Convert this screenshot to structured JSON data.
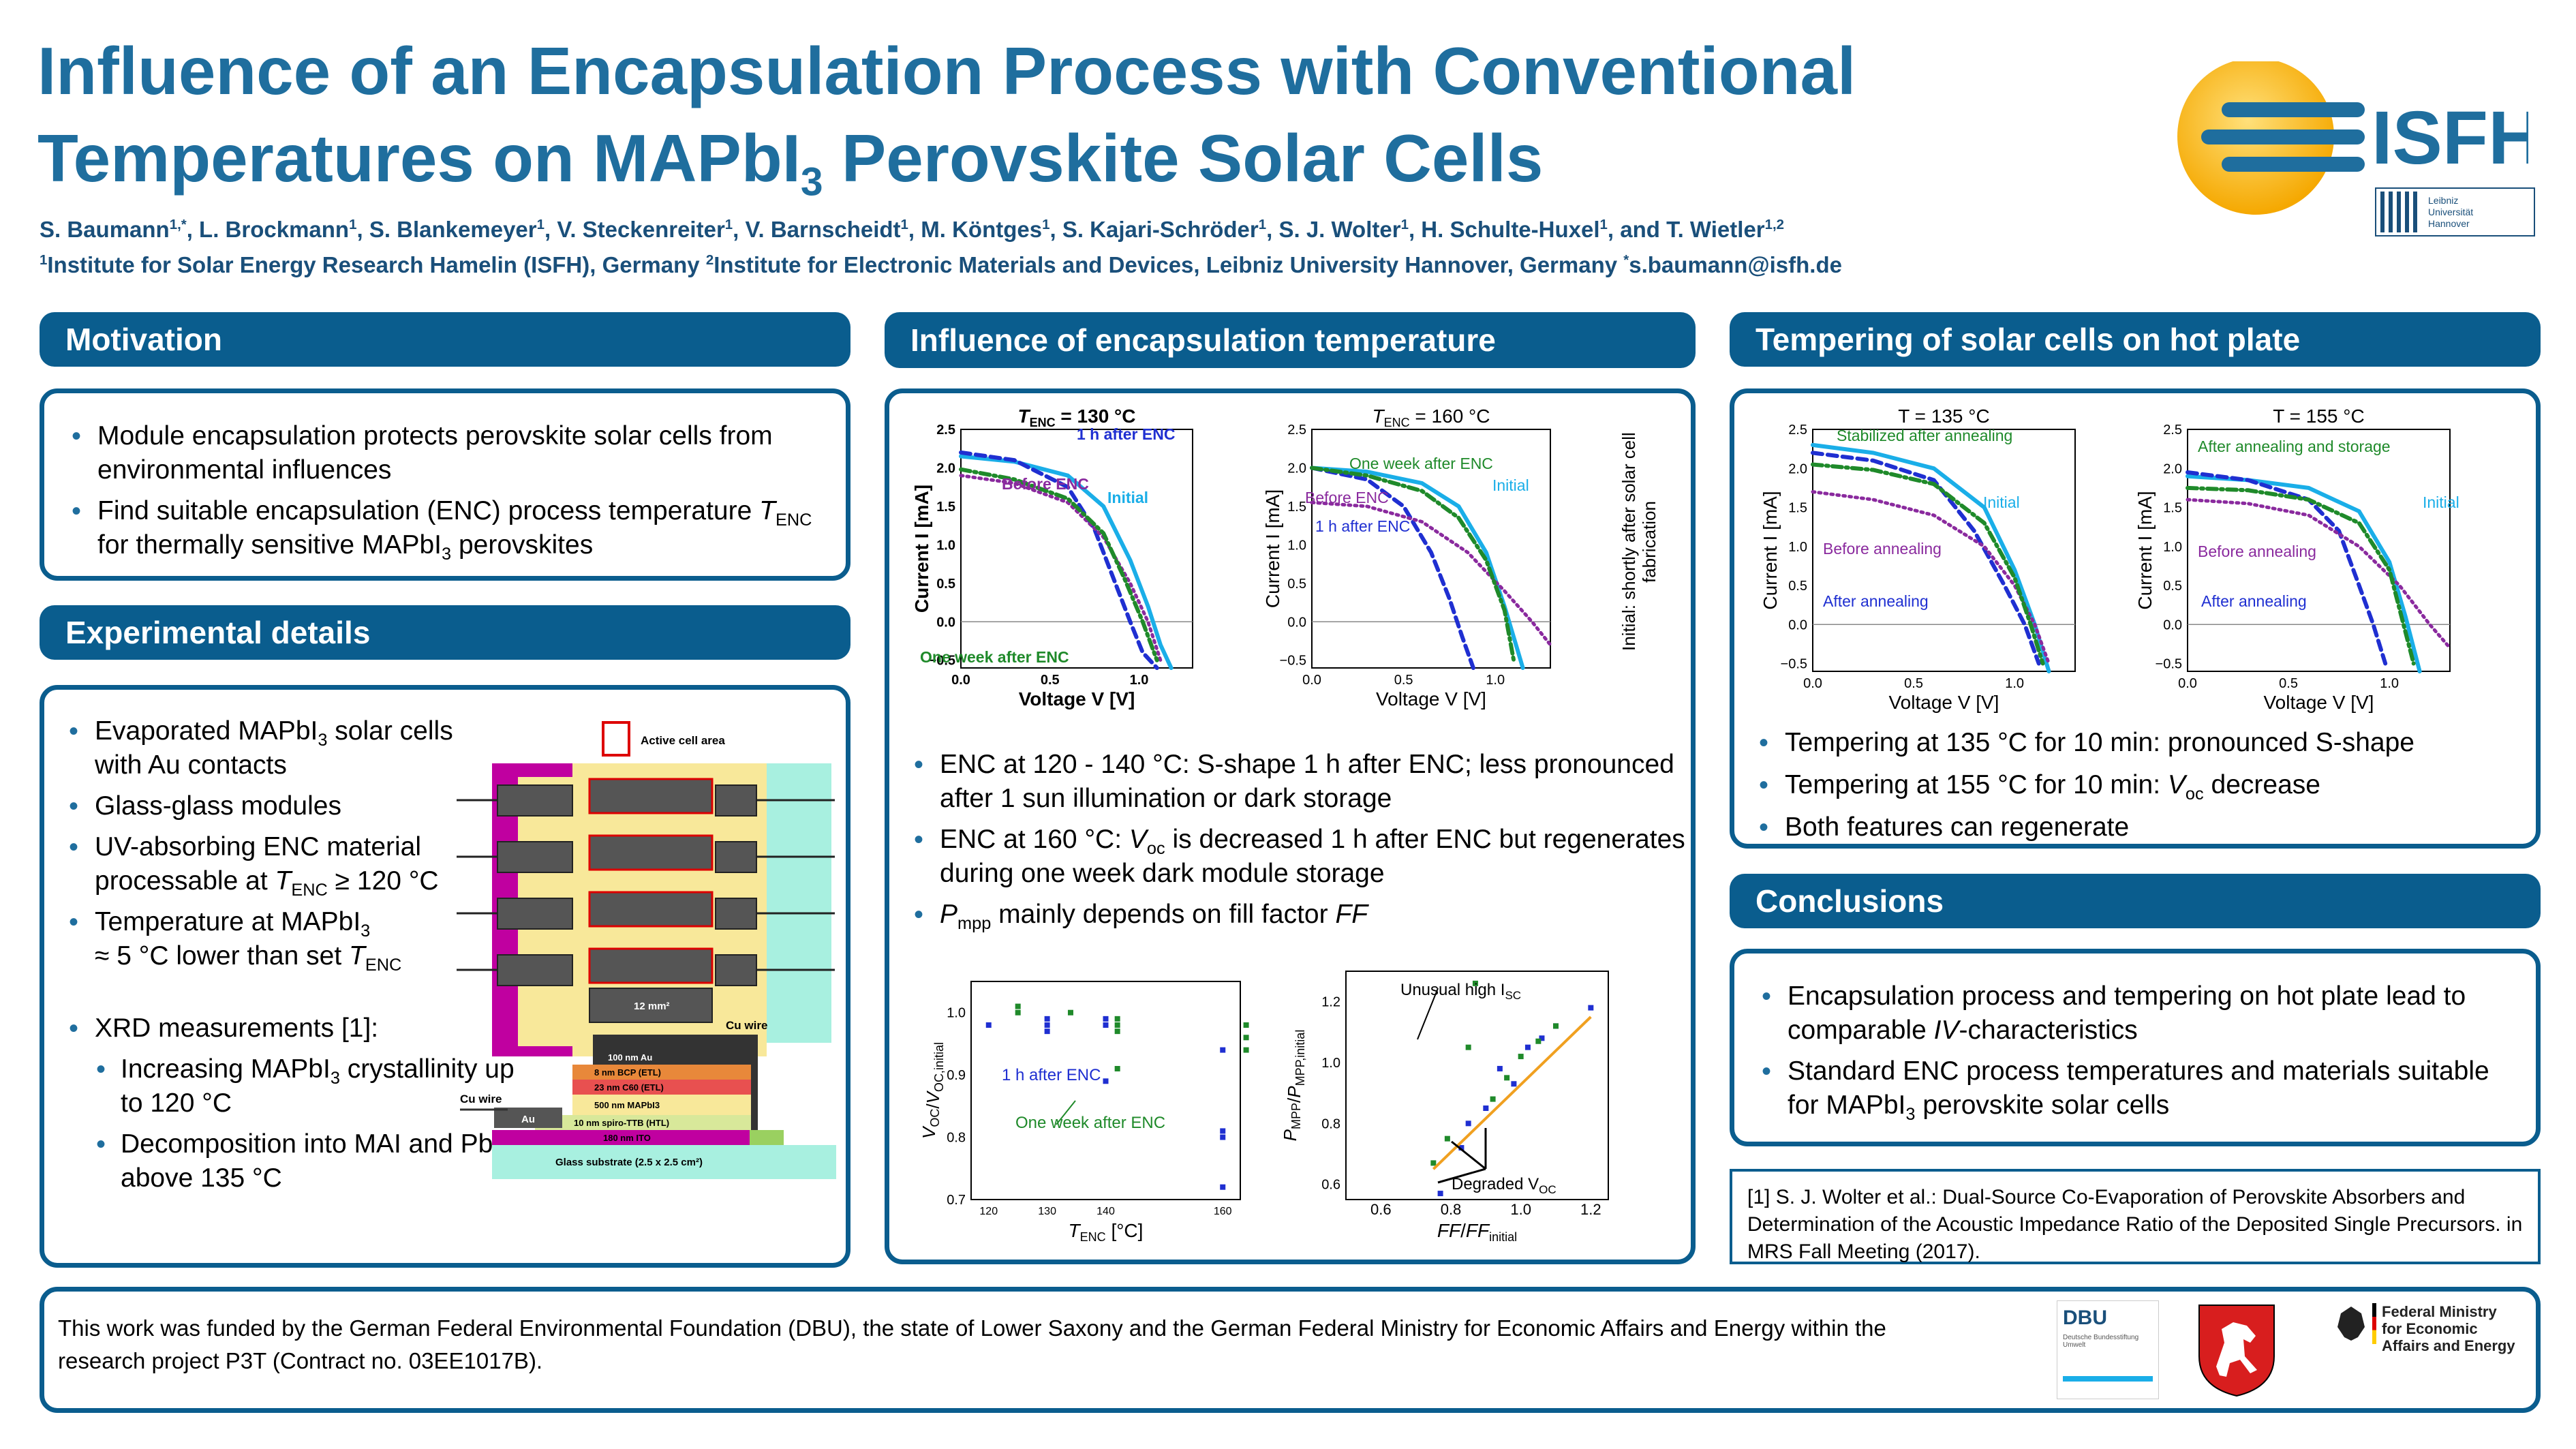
{
  "title": {
    "line1": "Influence of an Encapsulation Process with Conventional",
    "line2a": "Temperatures on MAPbI",
    "line2sub": "3",
    "line2b": " Perovskite Solar Cells"
  },
  "authors": {
    "names": [
      "S. Baumann",
      "L. Brockmann",
      "S. Blankemeyer",
      "V. Steckenreiter",
      "V. Barnscheidt",
      "M. Köntges",
      "S. Kajari-Schröder",
      "S. J. Wolter",
      "H. Schulte-Huxel",
      "and T. Wietler"
    ],
    "sups": [
      "1,*",
      "1",
      "1",
      "1",
      "1",
      "1",
      "1",
      "1",
      "1",
      "1,2"
    ]
  },
  "affiliations": {
    "a1": "Institute for Solar Energy Research Hamelin (ISFH), Germany ",
    "a2": "Institute for Electronic Materials and Devices, Leibniz University Hannover, Germany ",
    "email": "s.baumann@isfh.de"
  },
  "logos": {
    "isfh": "ISFH",
    "leibniz": "Leibniz\nUniversität\nHannover",
    "dbu": "DBU",
    "dbu_small": "Deutsche Bundesstiftung Umwelt",
    "ministry": "Federal Ministry for Economic Affairs and Energy"
  },
  "headers": {
    "motivation": "Motivation",
    "experimental": "Experimental details",
    "influence": "Influence of encapsulation temperature",
    "tempering": "Tempering of solar cells on hot plate",
    "conclusions": "Conclusions"
  },
  "motivation": {
    "b1": "Module encapsulation protects perovskite solar cells from environmental influences",
    "b2a": "Find suitable encapsulation (ENC) process temperature ",
    "b2b": " for thermally sensitive MAPbI",
    "b2c": " perovskites"
  },
  "experimental": {
    "b1a": "Evaporated MAPbI",
    "b1b": " solar cells with Au contacts",
    "b2": "Glass-glass modules",
    "b3a": "UV-absorbing ENC material processable at ",
    "b3b": " ≥ 120 °C",
    "b4a": "Temperature at MAPbI",
    "b4b": "≈ 5 °C lower than set ",
    "b5": "XRD measurements [1]:",
    "s1a": "Increasing MAPbI",
    "s1b": " crystallinity up to 120 °C",
    "s2a": "Decomposition into MAI and PbI",
    "s2b": " above 135 °C"
  },
  "diagram": {
    "active_cell_area": "Active cell area",
    "area_12": "12 mm²",
    "cu_wire_top": "Cu wire",
    "cu_wire_left": "Cu wire",
    "au": "Au",
    "layers": [
      "100 nm Au",
      "8 nm BCP (ETL)",
      "23 nm C60 (ETL)",
      "500 nm MAPbI3",
      "10 nm spiro-TTB (HTL)",
      "180 nm ITO",
      "Glass substrate (2.5 x 2.5 cm²)"
    ]
  },
  "influence": {
    "b1": "ENC at 120 - 140 °C: S-shape 1 h after ENC; less pronounced after 1 sun illumination or dark storage",
    "b2a": "ENC at 160 °C: ",
    "b2b": " is decreased 1 h after ENC but regenerates during one week dark module storage",
    "b3a": " mainly depends on fill factor "
  },
  "tempering": {
    "b1": "Tempering at 135 °C for 10 min: pronounced S-shape",
    "b2a": "Tempering at 155 °C for 10 min: ",
    "b2b": " decrease",
    "b3": "Both features can regenerate"
  },
  "conclusions": {
    "b1a": "Encapsulation process and tempering on hot plate lead to comparable ",
    "b1b": "IV",
    "b1c": "-characteristics",
    "b2a": "Standard ENC process temperatures and materials suitable for MAPbI",
    "b2b": " perovskite solar cells"
  },
  "reference": "[1] S. J. Wolter et al.: Dual-Source Co-Evaporation of Perovskite Absorbers and Determination of the Acoustic Impedance Ratio of the Deposited Single Precursors. in MRS Fall Meeting (2017).",
  "funding": "This work was funded by the German Federal Environmental Foundation (DBU), the state of Lower Saxony and the German Federal Ministry for Economic Affairs and Energy within the research project P3T (Contract no. 03EE1017B).",
  "side_note": "Initial: shortly after solar cell fabrication",
  "colors": {
    "initial": "#1aaee8",
    "before": "#8a2a9e",
    "after1h": "#1f2fd1",
    "week": "#1f8a2a"
  },
  "chart_data": [
    {
      "type": "line",
      "title": "T_ENC = 130 °C",
      "xlabel": "Voltage V [V]",
      "ylabel": "Current I [mA]",
      "xlim": [
        0,
        1.3
      ],
      "ylim": [
        -0.6,
        2.5
      ],
      "xticks": [
        "0.0",
        "0.5",
        "1.0"
      ],
      "yticks": [
        "−0.5",
        "0.0",
        "0.5",
        "1.0",
        "1.5",
        "2.0",
        "2.5"
      ],
      "annotations": [
        "1 h after ENC",
        "Before ENC",
        "Initial",
        "One week after ENC"
      ],
      "series": [
        {
          "name": "Initial",
          "style": "solid",
          "color": "#1aaee8",
          "x": [
            0,
            0.3,
            0.6,
            0.8,
            0.95,
            1.05,
            1.12,
            1.18
          ],
          "y": [
            2.15,
            2.08,
            1.9,
            1.5,
            0.8,
            0.2,
            -0.3,
            -0.6
          ]
        },
        {
          "name": "1 h after ENC",
          "style": "dashed",
          "color": "#1f2fd1",
          "x": [
            0,
            0.3,
            0.6,
            0.75,
            0.85,
            0.95,
            1.02,
            1.1
          ],
          "y": [
            2.2,
            2.1,
            1.75,
            1.2,
            0.6,
            0,
            -0.4,
            -0.6
          ]
        },
        {
          "name": "Before ENC",
          "style": "dotted",
          "color": "#8a2a9e",
          "x": [
            0,
            0.3,
            0.6,
            0.8,
            0.95,
            1.05,
            1.12
          ],
          "y": [
            1.9,
            1.8,
            1.55,
            1.1,
            0.5,
            0,
            -0.5
          ]
        },
        {
          "name": "One week after ENC",
          "style": "dashdot",
          "color": "#1f8a2a",
          "x": [
            0,
            0.3,
            0.6,
            0.8,
            0.92,
            1.02,
            1.1
          ],
          "y": [
            1.98,
            1.85,
            1.6,
            1.15,
            0.55,
            0,
            -0.5
          ]
        }
      ]
    },
    {
      "type": "line",
      "title": "T_ENC = 160 °C",
      "xlabel": "Voltage V [V]",
      "ylabel": "Current I [mA]",
      "xlim": [
        0,
        1.3
      ],
      "ylim": [
        -0.6,
        2.5
      ],
      "xticks": [
        "0.0",
        "0.5",
        "1.0"
      ],
      "yticks": [
        "−0.5",
        "0.0",
        "0.5",
        "1.0",
        "1.5",
        "2.0",
        "2.5"
      ],
      "annotations": [
        "One week after ENC",
        "Initial",
        "Before ENC",
        "1 h after ENC"
      ],
      "series": [
        {
          "name": "Initial",
          "style": "solid",
          "color": "#1aaee8",
          "x": [
            0,
            0.3,
            0.6,
            0.8,
            0.95,
            1.05,
            1.1,
            1.15
          ],
          "y": [
            2.0,
            1.95,
            1.8,
            1.5,
            0.9,
            0.2,
            -0.2,
            -0.6
          ]
        },
        {
          "name": "1 h after ENC",
          "style": "dashed",
          "color": "#1f2fd1",
          "x": [
            0,
            0.3,
            0.5,
            0.65,
            0.75,
            0.82,
            0.88
          ],
          "y": [
            2.0,
            1.85,
            1.5,
            0.9,
            0.3,
            -0.2,
            -0.6
          ]
        },
        {
          "name": "Before ENC",
          "style": "dotted",
          "color": "#8a2a9e",
          "x": [
            0,
            0.3,
            0.6,
            0.85,
            1.05,
            1.2,
            1.3
          ],
          "y": [
            1.55,
            1.5,
            1.3,
            0.9,
            0.4,
            0,
            -0.3
          ]
        },
        {
          "name": "One week after ENC",
          "style": "dashdot",
          "color": "#1f8a2a",
          "x": [
            0,
            0.3,
            0.6,
            0.8,
            0.95,
            1.05,
            1.1
          ],
          "y": [
            2.0,
            1.9,
            1.7,
            1.35,
            0.8,
            0.15,
            -0.5
          ]
        }
      ]
    },
    {
      "type": "line",
      "title": "T = 135 °C",
      "xlabel": "Voltage V [V]",
      "ylabel": "Current I [mA]",
      "xlim": [
        0,
        1.3
      ],
      "ylim": [
        -0.6,
        2.5
      ],
      "xticks": [
        "0.0",
        "0.5",
        "1.0"
      ],
      "yticks": [
        "−0.5",
        "0.0",
        "0.5",
        "1.0",
        "1.5",
        "2.0",
        "2.5"
      ],
      "annotations": [
        "Stabilized after annealing",
        "Initial",
        "Before annealing",
        "After annealing"
      ],
      "series": [
        {
          "name": "Initial",
          "style": "solid",
          "color": "#1aaee8",
          "x": [
            0,
            0.3,
            0.6,
            0.85,
            1.0,
            1.1,
            1.17
          ],
          "y": [
            2.3,
            2.2,
            2.0,
            1.5,
            0.7,
            0,
            -0.6
          ]
        },
        {
          "name": "After annealing",
          "style": "dashed",
          "color": "#1f2fd1",
          "x": [
            0,
            0.3,
            0.6,
            0.8,
            0.95,
            1.05,
            1.12
          ],
          "y": [
            2.2,
            2.1,
            1.85,
            1.2,
            0.5,
            0,
            -0.5
          ]
        },
        {
          "name": "Before annealing",
          "style": "dotted",
          "color": "#8a2a9e",
          "x": [
            0,
            0.3,
            0.6,
            0.85,
            1.0,
            1.1,
            1.17
          ],
          "y": [
            1.7,
            1.6,
            1.4,
            1.0,
            0.5,
            0,
            -0.5
          ]
        },
        {
          "name": "Stabilized after annealing",
          "style": "dashdot",
          "color": "#1f8a2a",
          "x": [
            0,
            0.3,
            0.6,
            0.85,
            1.0,
            1.08,
            1.14
          ],
          "y": [
            2.05,
            1.98,
            1.8,
            1.3,
            0.6,
            0,
            -0.5
          ]
        }
      ]
    },
    {
      "type": "line",
      "title": "T = 155 °C",
      "xlabel": "Voltage V [V]",
      "ylabel": "Current I [mA]",
      "xlim": [
        0,
        1.3
      ],
      "ylim": [
        -0.6,
        2.5
      ],
      "xticks": [
        "0.0",
        "0.5",
        "1.0"
      ],
      "yticks": [
        "−0.5",
        "0.0",
        "0.5",
        "1.0",
        "1.5",
        "2.0",
        "2.5"
      ],
      "annotations": [
        "After annealing and storage",
        "Initial",
        "Before annealing",
        "After annealing"
      ],
      "series": [
        {
          "name": "Initial",
          "style": "solid",
          "color": "#1aaee8",
          "x": [
            0,
            0.3,
            0.6,
            0.85,
            1.0,
            1.08,
            1.15
          ],
          "y": [
            1.9,
            1.85,
            1.75,
            1.45,
            0.8,
            0.1,
            -0.6
          ]
        },
        {
          "name": "After annealing",
          "style": "dashed",
          "color": "#1f2fd1",
          "x": [
            0,
            0.3,
            0.6,
            0.75,
            0.85,
            0.92,
            0.98
          ],
          "y": [
            1.95,
            1.85,
            1.6,
            1.2,
            0.5,
            0,
            -0.5
          ]
        },
        {
          "name": "Before annealing",
          "style": "dotted",
          "color": "#8a2a9e",
          "x": [
            0,
            0.3,
            0.6,
            0.85,
            1.05,
            1.2,
            1.3
          ],
          "y": [
            1.6,
            1.55,
            1.4,
            1.0,
            0.5,
            0,
            -0.3
          ]
        },
        {
          "name": "After annealing and storage",
          "style": "dashdot",
          "color": "#1f8a2a",
          "x": [
            0,
            0.3,
            0.6,
            0.85,
            1.0,
            1.07,
            1.12
          ],
          "y": [
            1.75,
            1.72,
            1.6,
            1.3,
            0.7,
            0,
            -0.5
          ]
        }
      ]
    },
    {
      "type": "scatter",
      "xlabel": "T_ENC [°C]",
      "ylabel": "V_OC/V_OC,initial",
      "xlim": [
        117,
        163
      ],
      "ylim": [
        0.7,
        1.05
      ],
      "xticks": [
        "120",
        "130",
        "140",
        "160"
      ],
      "yticks": [
        "0.7",
        "0.8",
        "0.9",
        "1.0"
      ],
      "annotations": [
        "1 h after ENC",
        "One week after ENC"
      ],
      "series": [
        {
          "name": "1 h after ENC",
          "color": "#1f2fd1",
          "x": [
            120,
            130,
            130,
            130,
            140,
            140,
            140,
            160,
            160,
            160,
            160
          ],
          "y": [
            0.98,
            0.99,
            0.98,
            0.97,
            0.99,
            0.98,
            0.89,
            0.94,
            0.81,
            0.8,
            0.72
          ]
        },
        {
          "name": "One week after ENC",
          "color": "#1f8a2a",
          "x": [
            125,
            125,
            134,
            142,
            142,
            142,
            142,
            164,
            164,
            164
          ],
          "y": [
            1.01,
            1.0,
            1.0,
            0.99,
            0.98,
            0.97,
            0.91,
            0.98,
            0.96,
            0.94
          ]
        }
      ]
    },
    {
      "type": "scatter",
      "xlabel": "FF/FF_initial",
      "ylabel": "P_MPP/P_MPP,initial",
      "xlim": [
        0.5,
        1.25
      ],
      "ylim": [
        0.55,
        1.3
      ],
      "xticks": [
        "0.6",
        "0.8",
        "1.0",
        "1.2"
      ],
      "yticks": [
        "0.6",
        "0.8",
        "1.0",
        "1.2"
      ],
      "annotations": [
        "Unusual high I_SC",
        "Degraded V_OC"
      ],
      "series": [
        {
          "name": "1 h after ENC",
          "color": "#1f2fd1",
          "x": [
            0.77,
            0.83,
            0.85,
            0.9,
            0.94,
            0.98,
            1.02,
            1.06,
            1.1,
            1.2
          ],
          "y": [
            0.57,
            0.72,
            0.8,
            0.85,
            0.98,
            0.93,
            1.05,
            1.08,
            1.12,
            1.18
          ]
        },
        {
          "name": "One week after ENC",
          "color": "#1f8a2a",
          "x": [
            0.75,
            0.79,
            0.85,
            0.87,
            0.92,
            0.96,
            1.0,
            1.05,
            1.1
          ],
          "y": [
            0.67,
            0.75,
            1.05,
            1.26,
            0.88,
            0.95,
            1.02,
            1.07,
            1.12
          ]
        },
        {
          "name": "Linear fit",
          "color": "#f0a020",
          "x": [
            0.75,
            1.2
          ],
          "y": [
            0.65,
            1.15
          ]
        }
      ]
    }
  ]
}
